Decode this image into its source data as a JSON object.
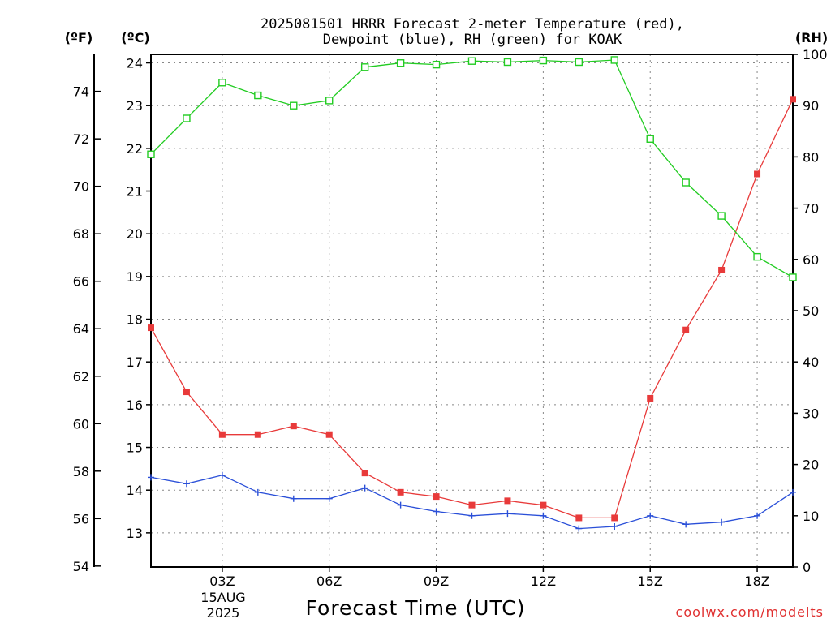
{
  "header": {
    "title_line1": "2025081501 HRRR Forecast 2-meter Temperature (red),",
    "title_line2": "Dewpoint (blue), RH (green) for KOAK"
  },
  "credit": "coolwx.com/modelts",
  "colors": {
    "temperature": "#e83a3a",
    "dewpoint": "#2a4fd8",
    "rh": "#22cc22",
    "frame": "#000000"
  },
  "chart_data": {
    "type": "line",
    "title": "2025081501 HRRR Forecast 2-meter Temperature (red), Dewpoint (blue), RH (green) for KOAK",
    "xlabel": "Forecast Time (UTC)",
    "x_hours": [
      1,
      2,
      3,
      4,
      5,
      6,
      7,
      8,
      9,
      10,
      11,
      12,
      13,
      14,
      15,
      16,
      17,
      18,
      19
    ],
    "xlim": [
      1,
      19
    ],
    "x_tick_hours": [
      3,
      6,
      9,
      12,
      15,
      18
    ],
    "x_tick_labels": [
      "03Z",
      "06Z",
      "09Z",
      "12Z",
      "15Z",
      "18Z"
    ],
    "x_date_line1": "15AUG",
    "x_date_line2": "2025",
    "y_left_c": {
      "label": "(ºC)",
      "lim": [
        12.2,
        24.2
      ],
      "ticks": [
        13,
        14,
        15,
        16,
        17,
        18,
        19,
        20,
        21,
        22,
        23,
        24
      ]
    },
    "y_left_f": {
      "label": "(ºF)",
      "ticks": [
        54,
        56,
        58,
        60,
        62,
        64,
        66,
        68,
        70,
        72,
        74
      ]
    },
    "y_right_rh": {
      "label": "(RH)",
      "lim": [
        0,
        100
      ],
      "ticks": [
        0,
        10,
        20,
        30,
        40,
        50,
        60,
        70,
        80,
        90,
        100
      ]
    },
    "grid": true,
    "series": [
      {
        "name": "Temperature",
        "axis": "c",
        "marker": "square-filled",
        "values": [
          17.8,
          16.3,
          15.3,
          15.3,
          15.5,
          15.3,
          14.4,
          13.95,
          13.85,
          13.65,
          13.75,
          13.65,
          13.35,
          13.35,
          16.15,
          17.75,
          19.15,
          21.4,
          23.15
        ]
      },
      {
        "name": "Dewpoint",
        "axis": "c",
        "marker": "plus",
        "values": [
          14.3,
          14.15,
          14.35,
          13.95,
          13.8,
          13.8,
          14.05,
          13.65,
          13.5,
          13.4,
          13.45,
          13.4,
          13.1,
          13.15,
          13.4,
          13.2,
          13.25,
          13.4,
          13.95
        ]
      },
      {
        "name": "RH",
        "axis": "rh",
        "marker": "square-open",
        "values": [
          80.5,
          87.5,
          94.5,
          92,
          90,
          91,
          97.5,
          98.3,
          98,
          98.7,
          98.5,
          98.8,
          98.5,
          98.9,
          83.5,
          75,
          68.5,
          60.5,
          56.5
        ]
      }
    ]
  }
}
